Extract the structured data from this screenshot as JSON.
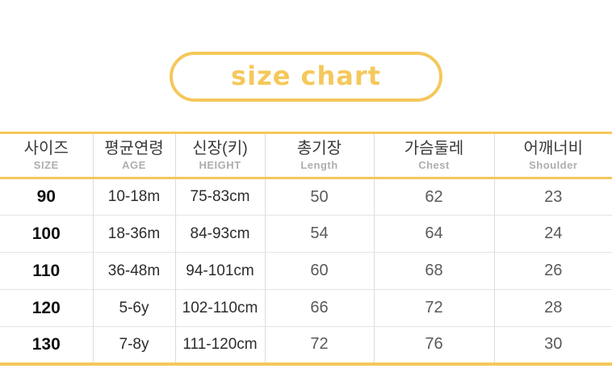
{
  "title": "size chart",
  "colors": {
    "accent": "#F5C85C",
    "grid_vertical": "#dcdcdc",
    "grid_horizontal": "#e4e4e4",
    "header_korean_text": "#3a3a3a",
    "header_english_text": "#aeaeae",
    "size_value_text": "#111111",
    "measure_value_text": "#5a5a5a"
  },
  "table": {
    "columns": [
      {
        "ko": "사이즈",
        "en": "SIZE"
      },
      {
        "ko": "평균연령",
        "en": "AGE"
      },
      {
        "ko": "신장(키)",
        "en": "HEIGHT"
      },
      {
        "ko": "총기장",
        "en": "Length"
      },
      {
        "ko": "가슴둘레",
        "en": "Chest"
      },
      {
        "ko": "어깨너비",
        "en": "Shoulder"
      }
    ],
    "rows": [
      [
        "90",
        "10-18m",
        "75-83cm",
        "50",
        "62",
        "23"
      ],
      [
        "100",
        "18-36m",
        "84-93cm",
        "54",
        "64",
        "24"
      ],
      [
        "110",
        "36-48m",
        "94-101cm",
        "60",
        "68",
        "26"
      ],
      [
        "120",
        "5-6y",
        "102-110cm",
        "66",
        "72",
        "28"
      ],
      [
        "130",
        "7-8y",
        "111-120cm",
        "72",
        "76",
        "30"
      ]
    ]
  },
  "chart_data": {
    "type": "table",
    "title": "size chart",
    "columns": [
      "사이즈 SIZE",
      "평균연령 AGE",
      "신장(키) HEIGHT",
      "총기장 Length",
      "가슴둘레 Chest",
      "어깨너비 Shoulder"
    ],
    "rows": [
      [
        "90",
        "10-18m",
        "75-83cm",
        50,
        62,
        23
      ],
      [
        "100",
        "18-36m",
        "84-93cm",
        54,
        64,
        24
      ],
      [
        "110",
        "36-48m",
        "94-101cm",
        60,
        68,
        26
      ],
      [
        "120",
        "5-6y",
        "102-110cm",
        66,
        72,
        28
      ],
      [
        "130",
        "7-8y",
        "111-120cm",
        72,
        76,
        30
      ]
    ]
  }
}
